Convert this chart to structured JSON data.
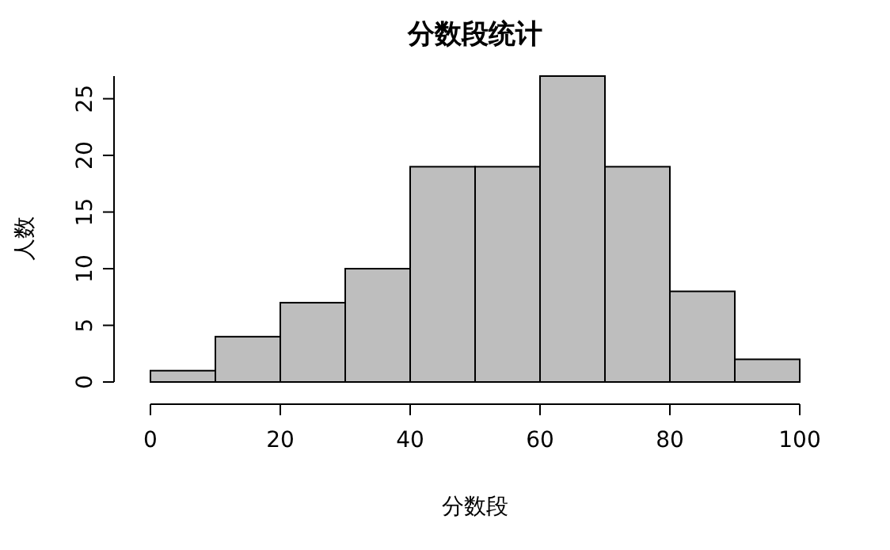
{
  "chart_data": {
    "type": "histogram",
    "title": "分数段统计",
    "xlabel": "分数段",
    "ylabel": "人数",
    "bins": [
      0,
      10,
      20,
      30,
      40,
      50,
      60,
      70,
      80,
      90,
      100
    ],
    "values": [
      1,
      4,
      7,
      10,
      19,
      19,
      27,
      19,
      8,
      2
    ],
    "color": "#bebebe",
    "xlim": [
      0,
      100
    ],
    "ylim": [
      0,
      27
    ],
    "xticks": [
      0,
      20,
      40,
      60,
      80,
      100
    ],
    "yticks": [
      0,
      5,
      10,
      15,
      20,
      25
    ]
  }
}
